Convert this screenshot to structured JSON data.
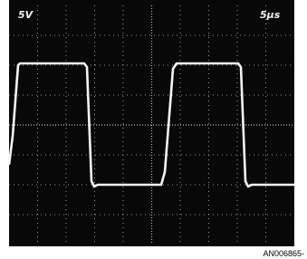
{
  "screen": {
    "volts_label": "5V",
    "time_label": "5μs"
  },
  "caption": "AN006865-"
}
